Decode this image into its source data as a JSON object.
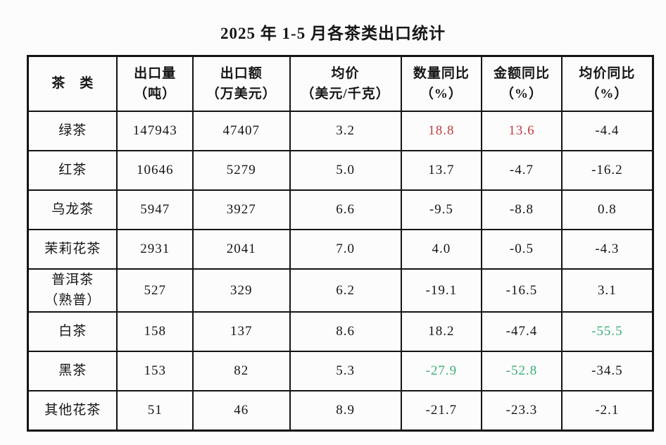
{
  "page": {
    "title": "2025 年 1-5 月各茶类出口统计"
  },
  "colors": {
    "red": "#c03c41",
    "green": "#3aae73",
    "text": "#161616",
    "border": "#141414",
    "background": "#fcfcfc"
  },
  "table": {
    "headers": [
      "茶　类",
      "出口量\n（吨）",
      "出口额\n（万美元）",
      "均价\n（美元/千克）",
      "数量同比\n（%）",
      "金额同比\n（%）",
      "均价同比\n（%）"
    ],
    "rows": [
      {
        "cells": [
          "绿茶",
          "147943",
          "47407",
          "3.2",
          "18.8",
          "13.6",
          "-4.4"
        ],
        "styles": [
          "",
          "",
          "",
          "",
          "red",
          "red",
          ""
        ]
      },
      {
        "cells": [
          "红茶",
          "10646",
          "5279",
          "5.0",
          "13.7",
          "-4.7",
          "-16.2"
        ],
        "styles": [
          "",
          "",
          "",
          "",
          "",
          "",
          ""
        ]
      },
      {
        "cells": [
          "乌龙茶",
          "5947",
          "3927",
          "6.6",
          "-9.5",
          "-8.8",
          "0.8"
        ],
        "styles": [
          "",
          "",
          "",
          "",
          "",
          "",
          ""
        ]
      },
      {
        "cells": [
          "茉莉花茶",
          "2931",
          "2041",
          "7.0",
          "4.0",
          "-0.5",
          "-4.3"
        ],
        "styles": [
          "",
          "",
          "",
          "",
          "",
          "",
          ""
        ]
      },
      {
        "cells": [
          "普洱茶\n（熟普）",
          "527",
          "329",
          "6.2",
          "-19.1",
          "-16.5",
          "3.1"
        ],
        "styles": [
          "",
          "",
          "",
          "",
          "",
          "",
          ""
        ]
      },
      {
        "cells": [
          "白茶",
          "158",
          "137",
          "8.6",
          "18.2",
          "-47.4",
          "-55.5"
        ],
        "styles": [
          "",
          "",
          "",
          "",
          "",
          "",
          "green"
        ]
      },
      {
        "cells": [
          "黑茶",
          "153",
          "82",
          "5.3",
          "-27.9",
          "-52.8",
          "-34.5"
        ],
        "styles": [
          "",
          "",
          "",
          "",
          "green",
          "green",
          ""
        ]
      },
      {
        "cells": [
          "其他花茶",
          "51",
          "46",
          "8.9",
          "-21.7",
          "-23.3",
          "-2.1"
        ],
        "styles": [
          "",
          "",
          "",
          "",
          "",
          "",
          ""
        ]
      }
    ]
  },
  "chart_data": {
    "type": "table",
    "title": "2025 年 1-5 月各茶类出口统计",
    "columns": [
      "茶类",
      "出口量（吨）",
      "出口额（万美元）",
      "均价（美元/千克）",
      "数量同比（%）",
      "金额同比（%）",
      "均价同比（%）"
    ],
    "rows": [
      [
        "绿茶",
        147943,
        47407,
        3.2,
        18.8,
        13.6,
        -4.4
      ],
      [
        "红茶",
        10646,
        5279,
        5.0,
        13.7,
        -4.7,
        -16.2
      ],
      [
        "乌龙茶",
        5947,
        3927,
        6.6,
        -9.5,
        -8.8,
        0.8
      ],
      [
        "茉莉花茶",
        2931,
        2041,
        7.0,
        4.0,
        -0.5,
        -4.3
      ],
      [
        "普洱茶（熟普）",
        527,
        329,
        6.2,
        -19.1,
        -16.5,
        3.1
      ],
      [
        "白茶",
        158,
        137,
        8.6,
        18.2,
        -47.4,
        -55.5
      ],
      [
        "黑茶",
        153,
        82,
        5.3,
        -27.9,
        -52.8,
        -34.5
      ],
      [
        "其他花茶",
        51,
        46,
        8.9,
        -21.7,
        -23.3,
        -2.1
      ]
    ],
    "highlighted_cells": [
      {
        "row": "绿茶",
        "column": "数量同比（%）",
        "value": 18.8,
        "color": "red"
      },
      {
        "row": "绿茶",
        "column": "金额同比（%）",
        "value": 13.6,
        "color": "red"
      },
      {
        "row": "白茶",
        "column": "均价同比（%）",
        "value": -55.5,
        "color": "green"
      },
      {
        "row": "黑茶",
        "column": "数量同比（%）",
        "value": -27.9,
        "color": "green"
      },
      {
        "row": "黑茶",
        "column": "金额同比（%）",
        "value": -52.8,
        "color": "green"
      }
    ]
  }
}
